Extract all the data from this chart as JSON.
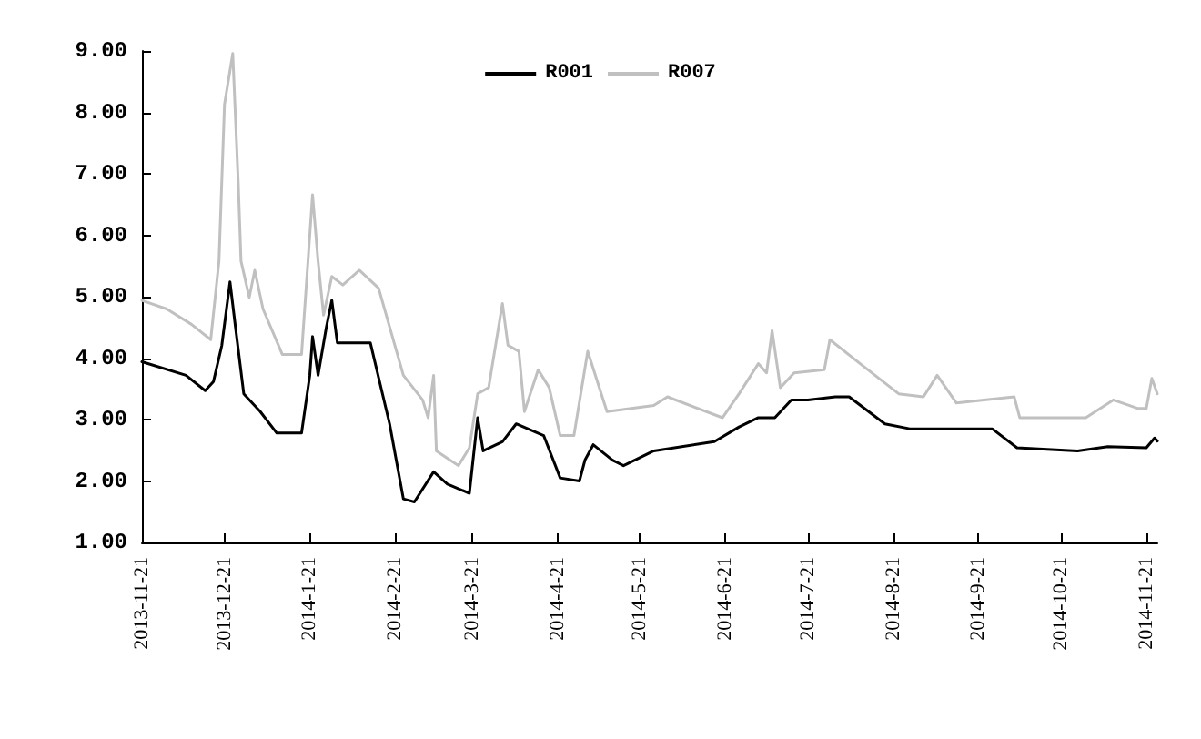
{
  "chart_data": {
    "type": "line",
    "xlim": [
      "2013-11-21",
      "2014-11-25"
    ],
    "xticks": [
      {
        "value": "2013-11-21",
        "label": "2013-11-21"
      },
      {
        "value": "2013-12-21",
        "label": "2013-12-21"
      },
      {
        "value": "2014-01-21",
        "label": "2014-1-21"
      },
      {
        "value": "2014-02-21",
        "label": "2014-2-21"
      },
      {
        "value": "2014-03-21",
        "label": "2014-3-21"
      },
      {
        "value": "2014-04-21",
        "label": "2014-4-21"
      },
      {
        "value": "2014-05-21",
        "label": "2014-5-21"
      },
      {
        "value": "2014-06-21",
        "label": "2014-6-21"
      },
      {
        "value": "2014-07-21",
        "label": "2014-7-21"
      },
      {
        "value": "2014-08-21",
        "label": "2014-8-21"
      },
      {
        "value": "2014-09-21",
        "label": "2014-9-21"
      },
      {
        "value": "2014-10-21",
        "label": "2014-10-21"
      },
      {
        "value": "2014-11-21",
        "label": "2014-11-21"
      }
    ],
    "ylim": [
      1,
      9
    ],
    "yticks": [
      {
        "value": 1,
        "label": "1.00"
      },
      {
        "value": 2,
        "label": "2.00"
      },
      {
        "value": 3,
        "label": "3.00"
      },
      {
        "value": 4,
        "label": "4.00"
      },
      {
        "value": 5,
        "label": "5.00"
      },
      {
        "value": 6,
        "label": "6.00"
      },
      {
        "value": 7,
        "label": "7.00"
      },
      {
        "value": 8,
        "label": "8.00"
      },
      {
        "value": 9,
        "label": "9.00"
      }
    ],
    "grid": false,
    "legend": "top",
    "marker": "none",
    "line_style": "solid",
    "series": [
      {
        "name": "R001",
        "color": "#000000",
        "x": [
          "2013-11-21",
          "2013-12-07",
          "2013-12-14",
          "2013-12-17",
          "2013-12-20",
          "2013-12-23",
          "2013-12-25",
          "2013-12-28",
          "2014-01-03",
          "2014-01-09",
          "2014-01-18",
          "2014-01-21",
          "2014-01-22",
          "2014-01-24",
          "2014-01-27",
          "2014-01-29",
          "2014-01-31",
          "2014-02-12",
          "2014-02-19",
          "2014-02-24",
          "2014-02-28",
          "2014-03-07",
          "2014-03-12",
          "2014-03-20",
          "2014-03-23",
          "2014-03-25",
          "2014-04-01",
          "2014-04-06",
          "2014-04-16",
          "2014-04-22",
          "2014-04-29",
          "2014-05-01",
          "2014-05-04",
          "2014-05-11",
          "2014-05-15",
          "2014-05-26",
          "2014-06-17",
          "2014-06-26",
          "2014-07-03",
          "2014-07-09",
          "2014-07-15",
          "2014-07-21",
          "2014-07-31",
          "2014-08-05",
          "2014-08-18",
          "2014-08-27",
          "2014-09-26",
          "2014-10-05",
          "2014-10-27",
          "2014-11-07",
          "2014-11-21",
          "2014-11-24",
          "2014-11-25"
        ],
        "values": [
          3.94,
          3.72,
          3.47,
          3.62,
          4.2,
          5.24,
          4.5,
          3.42,
          3.13,
          2.78,
          2.78,
          3.72,
          4.35,
          3.72,
          4.5,
          4.94,
          4.25,
          4.25,
          2.93,
          1.71,
          1.66,
          2.15,
          1.95,
          1.8,
          3.03,
          2.49,
          2.64,
          2.93,
          2.74,
          2.05,
          2.0,
          2.34,
          2.59,
          2.34,
          2.25,
          2.49,
          2.64,
          2.88,
          3.03,
          3.03,
          3.32,
          3.32,
          3.37,
          3.37,
          2.93,
          2.85,
          2.85,
          2.54,
          2.49,
          2.56,
          2.54,
          2.7,
          2.65
        ]
      },
      {
        "name": "R007",
        "color": "#c0c0c0",
        "x": [
          "2013-11-21",
          "2013-11-30",
          "2013-12-09",
          "2013-12-16",
          "2013-12-19",
          "2013-12-21",
          "2013-12-24",
          "2013-12-26",
          "2013-12-27",
          "2013-12-30",
          "2014-01-01",
          "2014-01-04",
          "2014-01-11",
          "2014-01-18",
          "2014-01-22",
          "2014-01-24",
          "2014-01-26",
          "2014-01-29",
          "2014-02-02",
          "2014-02-08",
          "2014-02-15",
          "2014-02-24",
          "2014-03-03",
          "2014-03-05",
          "2014-03-07",
          "2014-03-08",
          "2014-03-16",
          "2014-03-20",
          "2014-03-23",
          "2014-03-27",
          "2014-04-01",
          "2014-04-03",
          "2014-04-07",
          "2014-04-09",
          "2014-04-14",
          "2014-04-18",
          "2014-04-22",
          "2014-04-27",
          "2014-05-02",
          "2014-05-09",
          "2014-05-26",
          "2014-05-31",
          "2014-06-20",
          "2014-06-26",
          "2014-07-03",
          "2014-07-06",
          "2014-07-08",
          "2014-07-11",
          "2014-07-16",
          "2014-07-27",
          "2014-07-29",
          "2014-08-09",
          "2014-08-23",
          "2014-09-01",
          "2014-09-06",
          "2014-09-13",
          "2014-09-23",
          "2014-10-04",
          "2014-10-06",
          "2014-10-13",
          "2014-10-30",
          "2014-11-09",
          "2014-11-18",
          "2014-11-21",
          "2014-11-23",
          "2014-11-25"
        ],
        "values": [
          4.94,
          4.8,
          4.55,
          4.3,
          5.58,
          8.13,
          8.96,
          6.85,
          5.58,
          4.99,
          5.43,
          4.8,
          4.06,
          4.06,
          6.66,
          5.58,
          4.7,
          5.33,
          5.19,
          5.43,
          5.14,
          3.72,
          3.32,
          3.03,
          3.72,
          2.49,
          2.25,
          2.54,
          3.42,
          3.52,
          4.89,
          4.21,
          4.11,
          3.13,
          3.81,
          3.52,
          2.74,
          2.74,
          4.11,
          3.13,
          3.23,
          3.37,
          3.03,
          3.42,
          3.91,
          3.76,
          4.45,
          3.52,
          3.76,
          3.81,
          4.3,
          3.91,
          3.42,
          3.37,
          3.72,
          3.27,
          3.32,
          3.37,
          3.03,
          3.03,
          3.03,
          3.32,
          3.18,
          3.18,
          3.67,
          3.42
        ]
      }
    ]
  }
}
